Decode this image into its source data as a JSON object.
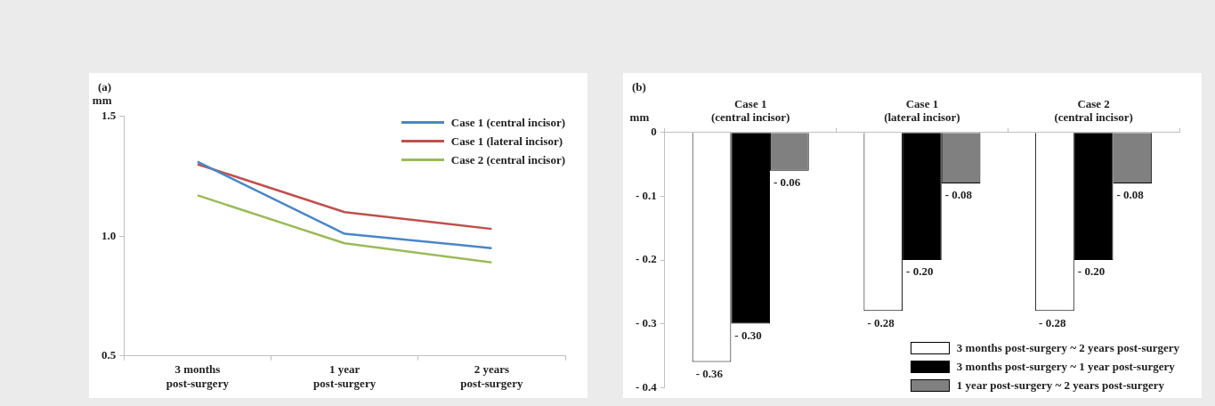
{
  "chart_data": [
    {
      "type": "line",
      "title": "(a)",
      "ylabel": "mm",
      "categories": [
        "3 months post-surgery",
        "1 year post-surgery",
        "2 years post-surgery"
      ],
      "series": [
        {
          "name": "Case 1 (central incisor)",
          "color": "#4a86c8",
          "values": [
            1.31,
            1.01,
            0.95
          ]
        },
        {
          "name": "Case 1 (lateral incisor)",
          "color": "#c0504d",
          "values": [
            1.3,
            1.1,
            1.03
          ]
        },
        {
          "name": "Case 2 (central incisor)",
          "color": "#9bbb59",
          "values": [
            1.17,
            0.97,
            0.89
          ]
        }
      ],
      "ylim": [
        0.5,
        1.5
      ],
      "yticks": [
        {
          "value": 0.5,
          "label": "0.5"
        },
        {
          "value": 1,
          "label": "1.0"
        },
        {
          "value": 1.5,
          "label": "1.5"
        }
      ],
      "grid": false,
      "legend": "top right",
      "marker": "none",
      "line_style": "solid"
    },
    {
      "type": "bar",
      "title": "(b)",
      "ylabel": "mm",
      "categories": [
        "Case 1 (central incisor)",
        "Case 1 (lateral incisor)",
        "Case 2 (central incisor)"
      ],
      "series": [
        {
          "name": "3 months post-surgery ~ 2 years post-surgery",
          "color": "#ffffff",
          "values": [
            -0.36,
            -0.28,
            -0.28
          ],
          "value_labels": [
            "- 0.36",
            "- 0.28",
            "- 0.28"
          ]
        },
        {
          "name": "3 months post-surgery ~ 1 year post-surgery",
          "color": "#000000",
          "values": [
            -0.3,
            -0.2,
            -0.2
          ],
          "value_labels": [
            "- 0.30",
            "- 0.20",
            "- 0.20"
          ]
        },
        {
          "name": "1 year post-surgery ~ 2 years post-surgery",
          "color": "#808080",
          "values": [
            -0.06,
            -0.08,
            -0.08
          ],
          "value_labels": [
            "- 0.06",
            "- 0.08",
            "- 0.08"
          ]
        }
      ],
      "ylim": [
        -0.4,
        0
      ],
      "yticks": [
        {
          "value": -0.4,
          "label": "- 0.4"
        },
        {
          "value": -0.3,
          "label": "- 0.3"
        },
        {
          "value": -0.2,
          "label": "- 0.2"
        },
        {
          "value": -0.1,
          "label": "- 0.1"
        },
        0
      ],
      "grid": false,
      "legend": "bottom right"
    }
  ]
}
